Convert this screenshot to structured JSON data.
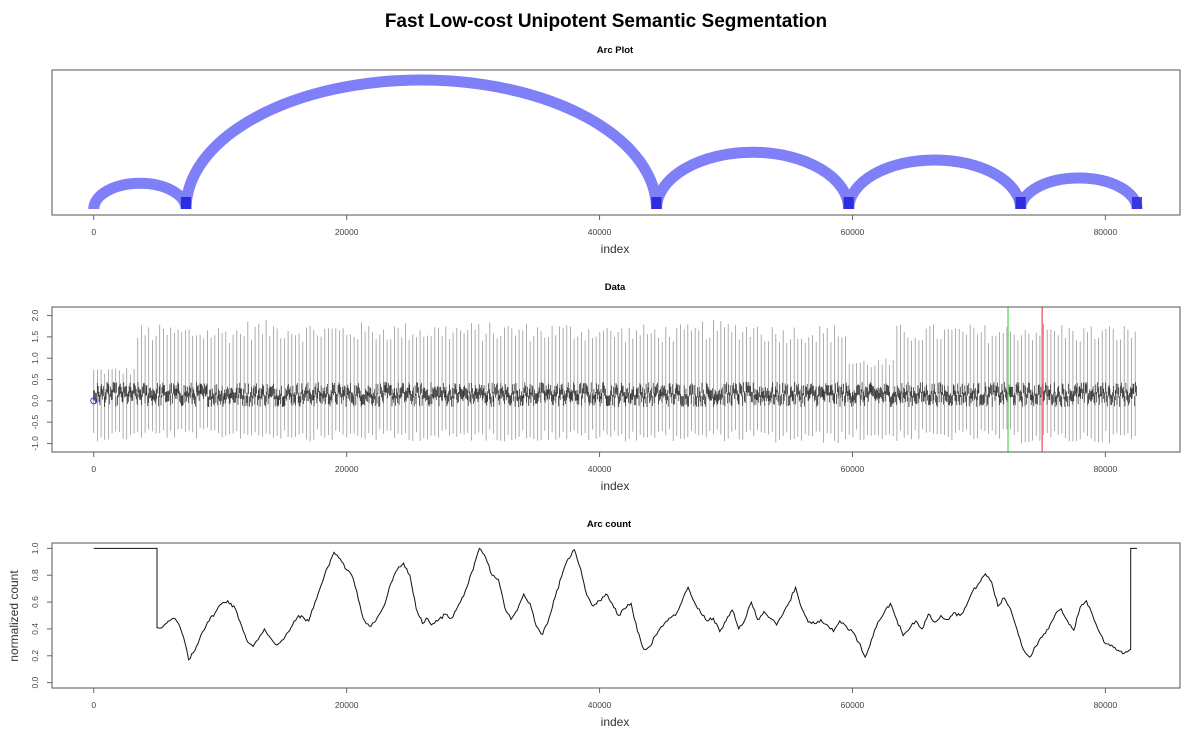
{
  "figure": {
    "title": "Fast Low-cost Unipotent Semantic Segmentation"
  },
  "chart_data": [
    {
      "type": "arc",
      "title": "Arc Plot",
      "xlabel": "index",
      "ylabel": "",
      "xlim": [
        -3300,
        85900
      ],
      "x_ticks": [
        0,
        20000,
        40000,
        60000,
        80000
      ],
      "arcs": [
        {
          "from": 0,
          "to": 7300,
          "height": 0.2
        },
        {
          "from": 7300,
          "to": 44500,
          "height": 1.0
        },
        {
          "from": 44500,
          "to": 59700,
          "height": 0.44
        },
        {
          "from": 59700,
          "to": 73300,
          "height": 0.38
        },
        {
          "from": 73300,
          "to": 82500,
          "height": 0.24
        }
      ],
      "colors": {
        "arc": "#7f7ff7",
        "arc_end": "#2a2ae0"
      }
    },
    {
      "type": "line",
      "title": "Data",
      "xlabel": "index",
      "ylabel": "",
      "xlim": [
        -3300,
        85900
      ],
      "ylim": [
        -1.2,
        2.2
      ],
      "x_ticks": [
        0,
        20000,
        40000,
        60000,
        80000
      ],
      "y_ticks": [
        -1.0,
        -0.5,
        0.0,
        0.5,
        1.0,
        1.5,
        2.0
      ],
      "y_tick_labels": [
        "-1.0",
        "-0.5",
        "0.0",
        "0.5",
        "1.0",
        "1.5",
        "2.0"
      ],
      "x_range": [
        0,
        82500
      ],
      "baseline": 0.15,
      "markers": [
        {
          "x": 72300,
          "color": "#66dd66"
        },
        {
          "x": 75000,
          "color": "#ee6666"
        }
      ],
      "start_marker": {
        "x": 0,
        "y": 0.0,
        "color": "#3333cc"
      },
      "segments": [
        {
          "from": 0,
          "to": 3300,
          "spike_max": 0.8,
          "spike_min": -0.95
        },
        {
          "from": 3300,
          "to": 11600,
          "spike_max": 1.8,
          "spike_min": -0.9
        },
        {
          "from": 11600,
          "to": 16000,
          "spike_max": 1.9,
          "spike_min": -0.9
        },
        {
          "from": 16000,
          "to": 40500,
          "spike_max": 1.85,
          "spike_min": -0.95
        },
        {
          "from": 40500,
          "to": 48000,
          "spike_max": 1.8,
          "spike_min": -0.95
        },
        {
          "from": 48000,
          "to": 53000,
          "spike_max": 1.9,
          "spike_min": -0.95
        },
        {
          "from": 53000,
          "to": 59500,
          "spike_max": 1.8,
          "spike_min": -1.0
        },
        {
          "from": 59500,
          "to": 63500,
          "spike_max": 1.0,
          "spike_min": -0.95
        },
        {
          "from": 63500,
          "to": 72500,
          "spike_max": 1.8,
          "spike_min": -0.95
        },
        {
          "from": 72500,
          "to": 77000,
          "spike_max": 1.85,
          "spike_min": -1.0
        },
        {
          "from": 77000,
          "to": 82500,
          "spike_max": 1.8,
          "spike_min": -1.0
        }
      ]
    },
    {
      "type": "line",
      "title": "Arc count",
      "xlabel": "index",
      "ylabel": "normalized count",
      "xlim": [
        -3300,
        85900
      ],
      "ylim": [
        -0.04,
        1.04
      ],
      "x_ticks": [
        0,
        20000,
        40000,
        60000,
        80000
      ],
      "y_ticks": [
        0.0,
        0.2,
        0.4,
        0.6,
        0.8,
        1.0
      ],
      "y_tick_labels": [
        "0.0",
        "0.2",
        "0.4",
        "0.6",
        "0.8",
        "1.0"
      ],
      "series": [
        {
          "x": [
            0,
            5000,
            5000,
            5500,
            6000,
            6300,
            6700,
            7100,
            7500,
            8000,
            8500,
            9000,
            9600,
            10000,
            10600,
            11200,
            11700,
            12200,
            12600,
            13000,
            13500,
            14000,
            14500,
            15000,
            15600,
            16200,
            17000,
            17500,
            18000,
            18500,
            19000,
            19500,
            20000,
            20400,
            20800,
            21300,
            21800,
            22300,
            23000,
            23500,
            24000,
            24500,
            25000,
            25500,
            26000,
            26300,
            26700,
            27200,
            27800,
            28300,
            29000,
            29500,
            30000,
            30500,
            31000,
            31500,
            32000,
            32500,
            33000,
            33500,
            34000,
            34500,
            35000,
            35500,
            36000,
            36500,
            37000,
            37500,
            38000,
            38500,
            39000,
            39500,
            40000,
            40500,
            41000,
            41500,
            42000,
            42500,
            43000,
            43500,
            44000,
            44400,
            45000,
            45500,
            46000,
            46500,
            47000,
            47500,
            48000,
            48500,
            49000,
            49500,
            50000,
            50500,
            51000,
            51500,
            52000,
            52500,
            53000,
            53500,
            54000,
            54500,
            55000,
            55500,
            56000,
            56500,
            57000,
            57500,
            58000,
            58500,
            59000,
            59500,
            60000,
            60500,
            61000,
            61500,
            62000,
            62500,
            63000,
            63500,
            64000,
            64500,
            65000,
            65500,
            66000,
            66500,
            67000,
            67500,
            68000,
            68500,
            69000,
            69500,
            70000,
            70500,
            71000,
            71500,
            72000,
            72500,
            73000,
            73500,
            74000,
            74500,
            75000,
            75500,
            76000,
            76500,
            77000,
            77500,
            78000,
            78500,
            79000,
            79500,
            80000,
            80500,
            81000,
            81500,
            82000,
            82000,
            82500
          ],
          "y": [
            1.0,
            1.0,
            0.41,
            0.42,
            0.46,
            0.48,
            0.44,
            0.34,
            0.17,
            0.24,
            0.36,
            0.45,
            0.52,
            0.58,
            0.61,
            0.55,
            0.42,
            0.3,
            0.27,
            0.32,
            0.4,
            0.33,
            0.28,
            0.32,
            0.41,
            0.5,
            0.46,
            0.6,
            0.73,
            0.86,
            0.97,
            0.92,
            0.84,
            0.8,
            0.68,
            0.48,
            0.42,
            0.46,
            0.58,
            0.74,
            0.84,
            0.89,
            0.8,
            0.55,
            0.44,
            0.48,
            0.43,
            0.46,
            0.51,
            0.48,
            0.6,
            0.71,
            0.84,
            1.0,
            0.93,
            0.8,
            0.77,
            0.56,
            0.47,
            0.54,
            0.66,
            0.59,
            0.42,
            0.36,
            0.48,
            0.64,
            0.79,
            0.92,
            0.99,
            0.85,
            0.65,
            0.57,
            0.61,
            0.66,
            0.59,
            0.5,
            0.55,
            0.59,
            0.38,
            0.25,
            0.27,
            0.35,
            0.42,
            0.48,
            0.5,
            0.6,
            0.71,
            0.6,
            0.52,
            0.46,
            0.48,
            0.38,
            0.46,
            0.54,
            0.4,
            0.47,
            0.6,
            0.47,
            0.53,
            0.48,
            0.43,
            0.51,
            0.6,
            0.71,
            0.55,
            0.45,
            0.44,
            0.47,
            0.43,
            0.38,
            0.46,
            0.42,
            0.38,
            0.3,
            0.19,
            0.32,
            0.45,
            0.52,
            0.59,
            0.47,
            0.35,
            0.4,
            0.46,
            0.4,
            0.51,
            0.45,
            0.5,
            0.47,
            0.52,
            0.5,
            0.57,
            0.68,
            0.74,
            0.81,
            0.75,
            0.57,
            0.63,
            0.55,
            0.4,
            0.25,
            0.19,
            0.27,
            0.34,
            0.4,
            0.5,
            0.55,
            0.46,
            0.39,
            0.56,
            0.61,
            0.5,
            0.38,
            0.29,
            0.28,
            0.24,
            0.22,
            0.25,
            1.0,
            1.0
          ]
        }
      ]
    }
  ]
}
